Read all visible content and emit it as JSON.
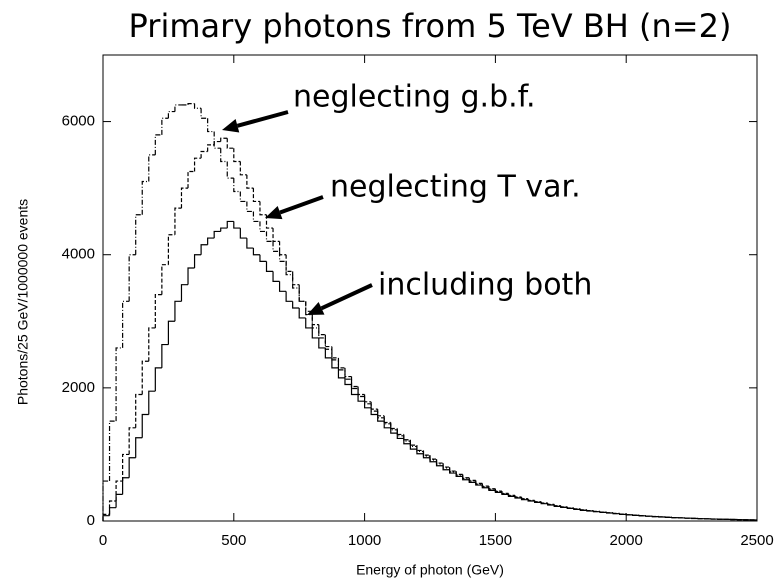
{
  "chart_data": {
    "type": "histogram",
    "title": "Primary photons from 5 TeV BH (n=2)",
    "xlabel": "Energy of photon (GeV)",
    "ylabel": "Photons/25 GeV/1000000 events",
    "bins": [
      0,
      25,
      50,
      75,
      100,
      125,
      150,
      175,
      200,
      225,
      250,
      275,
      300,
      325,
      350,
      375,
      400,
      425,
      450,
      475,
      500,
      525,
      550,
      575,
      600,
      625,
      650,
      675,
      700,
      725,
      750,
      775,
      800,
      825,
      850,
      875,
      900,
      925,
      950,
      975,
      1000,
      1025,
      1050,
      1075,
      1100,
      1125,
      1150,
      1175,
      1200,
      1225,
      1250,
      1275,
      1300,
      1325,
      1350,
      1375,
      1400,
      1425,
      1450,
      1475,
      1500,
      1525,
      1550,
      1575,
      1600,
      1625,
      1650,
      1675,
      1700,
      1725,
      1750,
      1775,
      1800,
      1825,
      1850,
      1875,
      1900,
      1925,
      1950,
      1975,
      2000,
      2025,
      2050,
      2075,
      2100,
      2125,
      2150,
      2175,
      2200,
      2225,
      2250,
      2275,
      2300,
      2325,
      2350,
      2375,
      2400,
      2425,
      2450,
      2475,
      2500
    ],
    "xlim": [
      0,
      2500
    ],
    "xticks": [
      0,
      500,
      1000,
      1500,
      2000,
      2500
    ],
    "ylim": [
      0,
      7000
    ],
    "yticks": [
      0,
      2000,
      4000,
      6000
    ],
    "series": [
      {
        "name": "neglecting g.b.f.",
        "color": "#000000",
        "linestyle": "dashdot",
        "values": [
          600,
          1500,
          2600,
          3300,
          4000,
          4600,
          5100,
          5500,
          5800,
          6050,
          6150,
          6250,
          6250,
          6270,
          6200,
          6050,
          5850,
          5600,
          5400,
          5150,
          4950,
          4800,
          4650,
          4500,
          4350,
          4200,
          4050,
          3900,
          3700,
          3500,
          3300,
          3100,
          2900,
          2750,
          2580,
          2420,
          2270,
          2130,
          1990,
          1870,
          1760,
          1650,
          1550,
          1460,
          1370,
          1280,
          1200,
          1120,
          1045,
          975,
          915,
          855,
          795,
          740,
          690,
          640,
          600,
          555,
          515,
          478,
          443,
          410,
          380,
          354,
          330,
          305,
          285,
          265,
          245,
          226,
          208,
          193,
          179,
          165,
          153,
          142,
          131,
          121,
          112,
          102,
          93,
          86,
          79,
          73,
          67,
          61,
          56,
          51,
          47,
          43,
          39,
          35,
          32,
          29,
          26,
          24,
          22,
          20,
          18,
          16
        ]
      },
      {
        "name": "neglecting T var.",
        "color": "#000000",
        "linestyle": "dashed",
        "values": [
          100,
          300,
          600,
          1000,
          1400,
          1900,
          2400,
          2900,
          3400,
          3850,
          4300,
          4700,
          5000,
          5250,
          5450,
          5550,
          5650,
          5700,
          5750,
          5600,
          5400,
          5200,
          5000,
          4800,
          4600,
          4400,
          4200,
          4000,
          3750,
          3550,
          3300,
          3150,
          2950,
          2800,
          2620,
          2450,
          2300,
          2170,
          2020,
          1900,
          1790,
          1680,
          1580,
          1480,
          1390,
          1300,
          1220,
          1140,
          1060,
          990,
          930,
          870,
          810,
          750,
          700,
          650,
          610,
          565,
          525,
          485,
          450,
          415,
          385,
          360,
          335,
          310,
          290,
          270,
          250,
          230,
          212,
          196,
          182,
          168,
          156,
          145,
          134,
          124,
          114,
          104,
          95,
          88,
          81,
          74,
          68,
          62,
          57,
          52,
          48,
          44,
          40,
          36,
          33,
          30,
          27,
          25,
          23,
          21,
          19,
          17
        ]
      },
      {
        "name": "including both",
        "color": "#000000",
        "linestyle": "solid",
        "values": [
          80,
          200,
          400,
          650,
          950,
          1250,
          1600,
          1950,
          2300,
          2650,
          3000,
          3300,
          3550,
          3800,
          4000,
          4150,
          4250,
          4350,
          4400,
          4500,
          4400,
          4250,
          4100,
          4000,
          3900,
          3750,
          3600,
          3450,
          3300,
          3200,
          3050,
          2900,
          2750,
          2600,
          2450,
          2300,
          2150,
          2050,
          1900,
          1800,
          1700,
          1600,
          1500,
          1400,
          1320,
          1240,
          1160,
          1080,
          1010,
          950,
          890,
          830,
          770,
          720,
          670,
          620,
          580,
          540,
          500,
          460,
          430,
          400,
          370,
          345,
          320,
          300,
          280,
          260,
          240,
          220,
          205,
          190,
          175,
          160,
          150,
          140,
          130,
          120,
          110,
          100,
          92,
          85,
          78,
          72,
          66,
          60,
          55,
          50,
          46,
          42,
          38,
          35,
          32,
          29,
          26,
          24,
          22,
          20,
          18,
          16
        ]
      }
    ]
  }
}
